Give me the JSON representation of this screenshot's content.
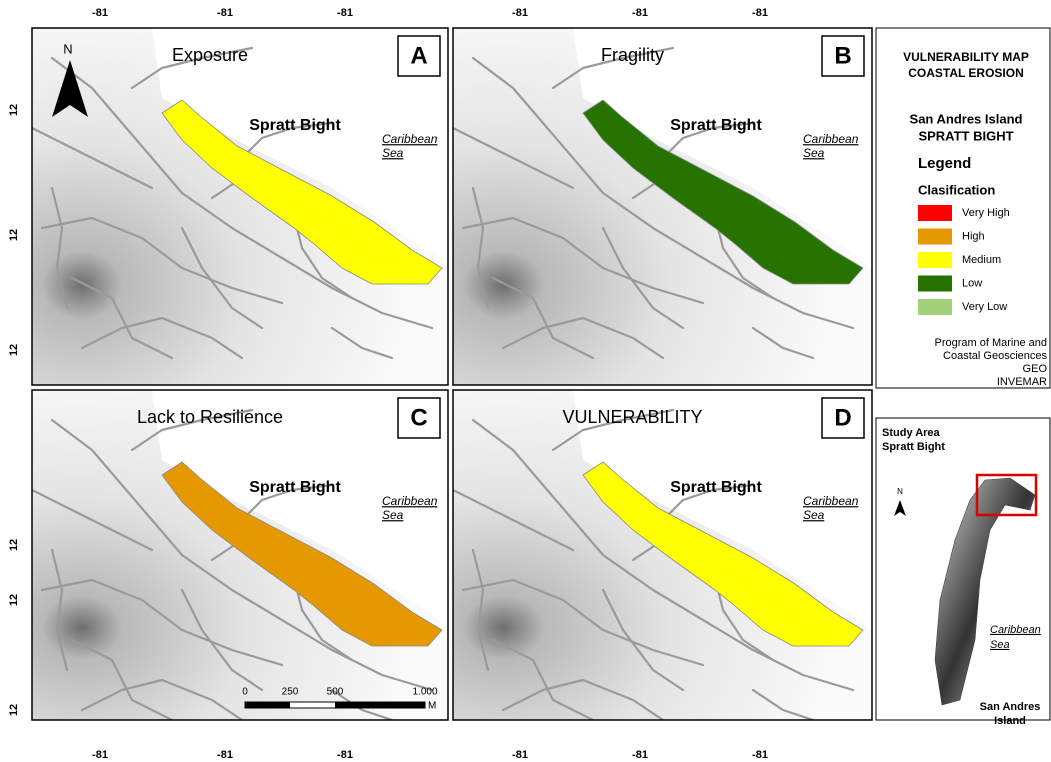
{
  "coordinates": {
    "top": [
      "-81",
      "-81",
      "-81",
      "-81",
      "-81",
      "-81"
    ],
    "bottom": [
      "-81",
      "-81",
      "-81",
      "-81",
      "-81",
      "-81"
    ],
    "left": [
      "12",
      "12",
      "12",
      "12",
      "12",
      "12"
    ]
  },
  "panels": [
    {
      "title": "Exposure",
      "letter": "A",
      "place": "Spratt Bight",
      "sea": [
        "Caribbean",
        "Sea"
      ],
      "zone_color": "#ffff00"
    },
    {
      "title": "Fragility",
      "letter": "B",
      "place": "Spratt Bight",
      "sea": [
        "Caribbean",
        "Sea"
      ],
      "zone_color": "#267300"
    },
    {
      "title": "Lack to Resilience",
      "letter": "C",
      "place": "Spratt Bight",
      "sea": [
        "Caribbean",
        "Sea"
      ],
      "zone_color": "#e69800"
    },
    {
      "title": "VULNERABILITY",
      "letter": "D",
      "place": "Spratt Bight",
      "sea": [
        "Caribbean",
        "Sea"
      ],
      "zone_color": "#ffff00"
    }
  ],
  "north": "N",
  "scale_bar": {
    "labels": [
      "0",
      "250",
      "500",
      "1.000"
    ],
    "unit": "M"
  },
  "legend": {
    "title": [
      "VULNERABILITY MAP",
      "COASTAL EROSION"
    ],
    "area": [
      "San Andres Island",
      "SPRATT BIGHT"
    ],
    "heading": "Legend",
    "subheading": "Clasification",
    "items": [
      {
        "label": "Very High",
        "color": "#ff0000"
      },
      {
        "label": "High",
        "color": "#e69800"
      },
      {
        "label": "Medium",
        "color": "#ffff00"
      },
      {
        "label": "Low",
        "color": "#267300"
      },
      {
        "label": "Very Low",
        "color": "#a3d17a"
      }
    ],
    "credits": [
      "Program of Marine and",
      "Coastal Geosciences",
      "GEO",
      "INVEMAR"
    ]
  },
  "inset": {
    "title": [
      "Study Area",
      "Spratt Bight"
    ],
    "north": "N",
    "sea": [
      "Caribbean",
      "Sea"
    ],
    "island": [
      "San Andres",
      "Island"
    ]
  }
}
